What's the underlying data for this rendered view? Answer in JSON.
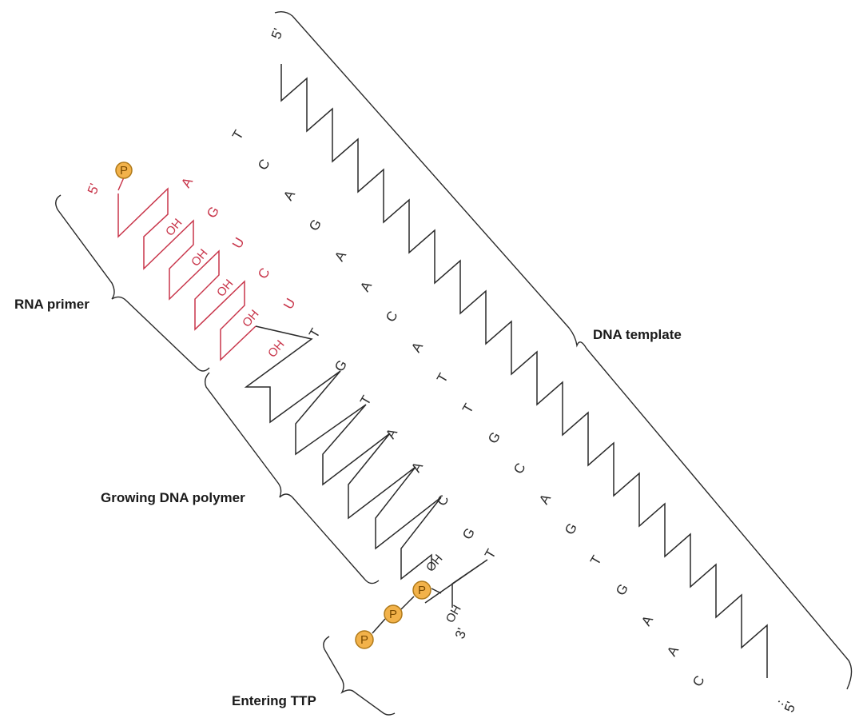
{
  "labels": {
    "rna_primer": "RNA primer",
    "dna_template": "DNA template",
    "growing_polymer": "Growing DNA polymer",
    "entering_ttp": "Entering TTP"
  },
  "template_strand": {
    "five_prime": "5'",
    "three_prime": "5'",
    "ellipsis": "…",
    "bases": [
      "T",
      "C",
      "A",
      "G",
      "A",
      "A",
      "C",
      "A",
      "T",
      "T",
      "G",
      "C",
      "A",
      "G",
      "T",
      "G",
      "A",
      "A",
      "C"
    ]
  },
  "primer": {
    "five_prime": "5'",
    "phosphate": "P",
    "bases": [
      "A",
      "G",
      "U",
      "C",
      "U"
    ],
    "hydroxyls": [
      "OH",
      "OH",
      "OH",
      "OH",
      "OH"
    ]
  },
  "growing_strand": {
    "bases": [
      "T",
      "G",
      "T",
      "A",
      "A",
      "C",
      "G"
    ],
    "terminal_oh": "OH"
  },
  "incoming_ttp": {
    "base": "T",
    "oh": "OH",
    "three_prime": "3'",
    "phosphates": [
      "P",
      "P",
      "P"
    ]
  },
  "colors": {
    "primer": "#c8354a",
    "strand": "#2a2a2a",
    "phosphate_fill": "#f2b24a",
    "phosphate_stroke": "#b07a1a"
  }
}
